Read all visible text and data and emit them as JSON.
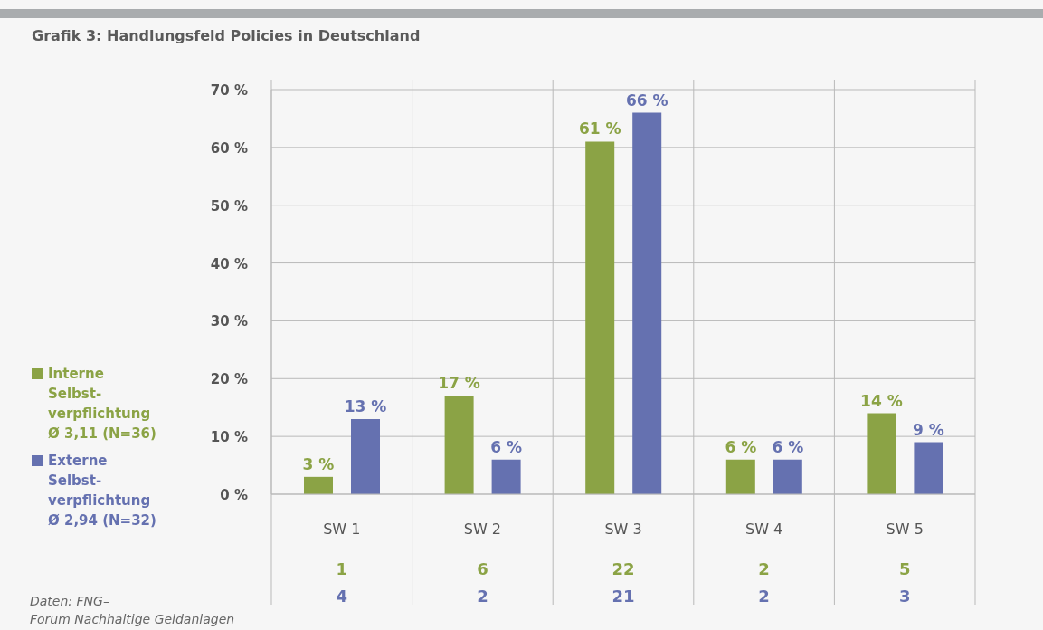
{
  "chart_data": {
    "type": "bar",
    "title": "Grafik 3: Handlungsfeld Policies in Deutschland",
    "categories": [
      "SW 1",
      "SW 2",
      "SW 3",
      "SW 4",
      "SW 5"
    ],
    "series": [
      {
        "name": "Interne Selbst-verpflichtung Ø 3,11 (N=36)",
        "color": "#8ba345",
        "values": [
          3,
          17,
          61,
          6,
          14
        ],
        "value_labels": [
          "3 %",
          "17 %",
          "61 %",
          "6 %",
          "14 %"
        ]
      },
      {
        "name": "Externe Selbst-verpflichtung Ø 2,94 (N=32)",
        "color": "#6571b0",
        "values": [
          13,
          6,
          66,
          6,
          9
        ],
        "value_labels": [
          "13 %",
          "6 %",
          "66 %",
          "6 %",
          "9 %"
        ]
      }
    ],
    "ylim": [
      0,
      70
    ],
    "yticks": [
      {
        "value": 0,
        "label": "0 %"
      },
      {
        "value": 10,
        "label": "10 %"
      },
      {
        "value": 20,
        "label": "20 %"
      },
      {
        "value": 30,
        "label": "30 %"
      },
      {
        "value": 40,
        "label": "40 %"
      },
      {
        "value": 50,
        "label": "50 %"
      },
      {
        "value": 60,
        "label": "60 %"
      },
      {
        "value": 70,
        "label": "70 %"
      }
    ],
    "grid": true,
    "legend": "left",
    "annotations": [
      "1",
      "6",
      "22",
      "2",
      "5",
      "4",
      "2",
      "21",
      "2",
      "3",
      "Daten: FNG–\nForum Nachhaltige Geldanlagen"
    ]
  }
}
